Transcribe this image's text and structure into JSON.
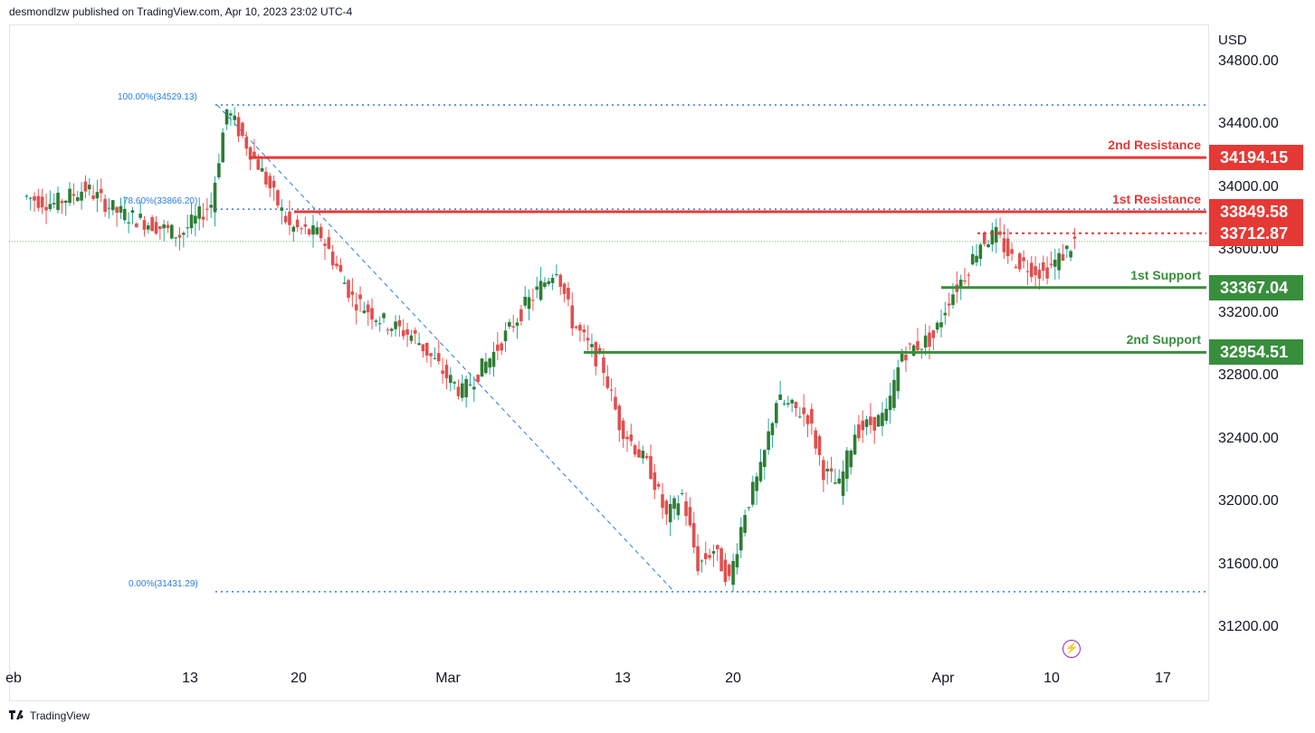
{
  "header": {
    "published": "desmondlzw published on TradingView.com, Apr 10, 2023 23:02 UTC-4"
  },
  "footer": {
    "brand": "TradingView"
  },
  "colors": {
    "resistance": "#e53935",
    "support": "#388e3c",
    "fib": "#2a7de1",
    "up": "#26a69a",
    "down": "#ef5350",
    "up_body": "#2e7d32",
    "down_body": "#e04f4f"
  },
  "chart_data": {
    "type": "candlestick",
    "currency": "USD",
    "ylim": [
      30900,
      35000
    ],
    "y_ticks": [
      "34800.00",
      "34400.00",
      "34000.00",
      "33600.00",
      "33200.00",
      "32800.00",
      "32400.00",
      "32000.00",
      "31600.00",
      "31200.00"
    ],
    "y_tick_values": [
      34800,
      34400,
      34000,
      33600,
      33200,
      32800,
      32400,
      32000,
      31600,
      31200
    ],
    "x_ticks": [
      "eb",
      "13",
      "20",
      "Mar",
      "13",
      "20",
      "Apr",
      "10",
      "17"
    ],
    "levels": [
      {
        "name": "2nd Resistance",
        "value": 34194.15,
        "display": "34194.15",
        "kind": "resistance"
      },
      {
        "name": "1st Resistance",
        "value": 33849.58,
        "display": "33849.58",
        "kind": "resistance"
      },
      {
        "name": "",
        "value": 33712.87,
        "display": "33712.87",
        "kind": "current"
      },
      {
        "name": "1st Support",
        "value": 33367.04,
        "display": "33367.04",
        "kind": "support"
      },
      {
        "name": "2nd Support",
        "value": 32954.51,
        "display": "32954.51",
        "kind": "support"
      }
    ],
    "fib": [
      {
        "label": "100.00%(34529.13)",
        "value": 34529.13
      },
      {
        "label": "78.60%(33866.20)",
        "value": 33866.2
      },
      {
        "label": "0.00%(31431.29)",
        "value": 31431.29
      }
    ],
    "price_path": [
      [
        1,
        33950
      ],
      [
        3,
        33900
      ],
      [
        5,
        34000
      ],
      [
        7,
        33850
      ],
      [
        9,
        33780
      ],
      [
        11,
        33700
      ],
      [
        13,
        33900
      ],
      [
        14,
        34500
      ],
      [
        16,
        34150
      ],
      [
        18,
        33750
      ],
      [
        20,
        33700
      ],
      [
        22,
        33300
      ],
      [
        24,
        33150
      ],
      [
        26,
        33050
      ],
      [
        28,
        32800
      ],
      [
        29,
        32700
      ],
      [
        31,
        32950
      ],
      [
        33,
        33250
      ],
      [
        35,
        33500
      ],
      [
        36,
        33150
      ],
      [
        38,
        32850
      ],
      [
        39,
        32500
      ],
      [
        41,
        32200
      ],
      [
        42,
        31900
      ],
      [
        43,
        32050
      ],
      [
        44,
        31600
      ],
      [
        45,
        31700
      ],
      [
        46,
        31500
      ],
      [
        47,
        31950
      ],
      [
        48,
        32200
      ],
      [
        49,
        32650
      ],
      [
        51,
        32550
      ],
      [
        52,
        32200
      ],
      [
        53,
        32100
      ],
      [
        54,
        32450
      ],
      [
        56,
        32550
      ],
      [
        57,
        32950
      ],
      [
        59,
        33050
      ],
      [
        60,
        33300
      ],
      [
        61,
        33450
      ],
      [
        62,
        33660
      ],
      [
        63,
        33700
      ],
      [
        64,
        33550
      ],
      [
        66,
        33460
      ],
      [
        67,
        33550
      ],
      [
        68,
        33660
      ]
    ]
  }
}
